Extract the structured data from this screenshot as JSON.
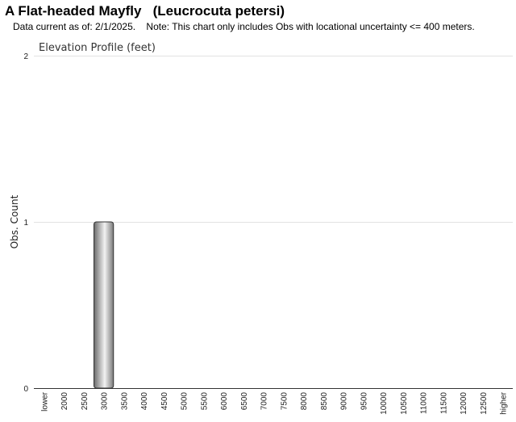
{
  "header": {
    "title": "A Flat-headed Mayfly   (Leucrocuta petersi)",
    "subtitle": "Data current as of: 2/1/2025.    Note: This chart only includes Obs with locational uncertainty <= 400 meters."
  },
  "chart_data": {
    "type": "bar",
    "title": "Elevation Profile (feet)",
    "xlabel": "",
    "ylabel": "Obs. Count",
    "categories": [
      "lower",
      "2000",
      "2500",
      "3000",
      "3500",
      "4000",
      "4500",
      "5000",
      "5500",
      "6000",
      "6500",
      "7000",
      "7500",
      "8000",
      "8500",
      "9000",
      "9500",
      "10000",
      "10500",
      "11000",
      "11500",
      "12000",
      "12500",
      "higher"
    ],
    "values": [
      0,
      0,
      0,
      1,
      0,
      0,
      0,
      0,
      0,
      0,
      0,
      0,
      0,
      0,
      0,
      0,
      0,
      0,
      0,
      0,
      0,
      0,
      0,
      0
    ],
    "ylim": [
      0,
      2
    ],
    "yticks": [
      0,
      1,
      2
    ],
    "grid": true,
    "legend": "none",
    "bar_color": "#9a9a9a"
  }
}
